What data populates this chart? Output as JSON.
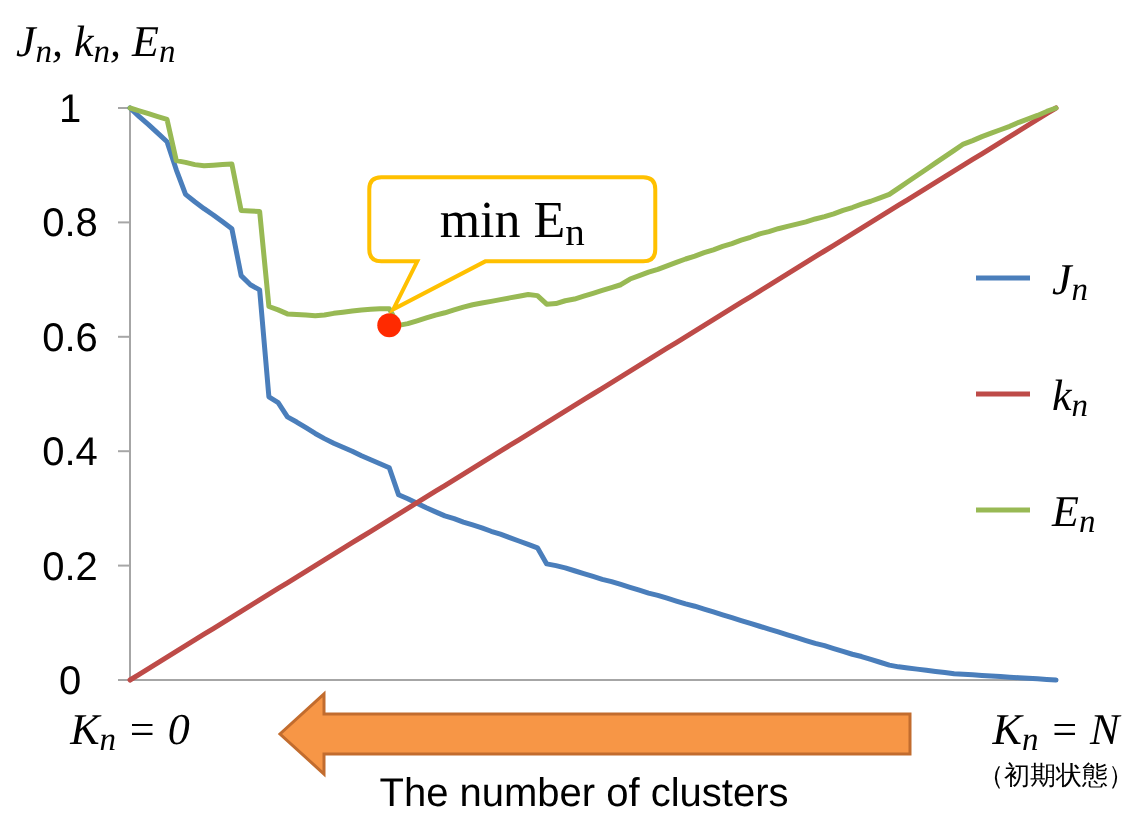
{
  "chart_data": {
    "type": "line",
    "ylabel": "J$_{n}$, k$_{n}$, E$_{n}$",
    "xlabel": "The number of clusters",
    "ylim": [
      0,
      1
    ],
    "yticks": [
      0,
      0.2,
      0.4,
      0.6,
      0.8,
      1
    ],
    "legend": "right",
    "categories": [
      "K$_{n}$ = 0",
      null,
      null,
      null,
      null,
      null,
      null,
      null,
      null,
      null,
      null,
      null,
      null,
      null,
      null,
      null,
      null,
      null,
      null,
      null,
      null,
      null,
      null,
      null,
      null,
      null,
      null,
      null,
      null,
      null,
      null,
      null,
      null,
      null,
      null,
      null,
      null,
      null,
      null,
      null,
      null,
      null,
      null,
      null,
      null,
      null,
      null,
      null,
      null,
      null,
      null,
      null,
      null,
      null,
      null,
      null,
      null,
      null,
      null,
      null,
      null,
      null,
      null,
      null,
      null,
      null,
      null,
      null,
      null,
      null,
      null,
      null,
      null,
      null,
      null,
      null,
      null,
      null,
      null,
      null,
      null,
      null,
      null,
      null,
      null,
      null,
      null,
      null,
      null,
      null,
      null,
      null,
      null,
      null,
      null,
      null,
      null,
      null,
      null,
      null,
      "K$_{n}$ = N"
    ],
    "series": [
      {
        "name": "J$_{n}$",
        "color": "#4a7ebb",
        "values": [
          1,
          0.985,
          0.971,
          0.956,
          0.941,
          0.892,
          0.849,
          0.836,
          0.824,
          0.813,
          0.801,
          0.789,
          0.707,
          0.691,
          0.682,
          0.495,
          0.485,
          0.46,
          0.451,
          0.441,
          0.431,
          0.422,
          0.414,
          0.407,
          0.4,
          0.392,
          0.385,
          0.378,
          0.371,
          0.324,
          0.317,
          0.309,
          0.301,
          0.294,
          0.287,
          0.282,
          0.276,
          0.271,
          0.266,
          0.26,
          0.255,
          0.249,
          0.243,
          0.237,
          0.231,
          0.203,
          0.2,
          0.196,
          0.191,
          0.186,
          0.181,
          0.176,
          0.172,
          0.167,
          0.162,
          0.157,
          0.152,
          0.148,
          0.143,
          0.138,
          0.133,
          0.129,
          0.124,
          0.119,
          0.114,
          0.109,
          0.104,
          0.099,
          0.094,
          0.089,
          0.084,
          0.079,
          0.074,
          0.069,
          0.064,
          0.06,
          0.055,
          0.05,
          0.045,
          0.041,
          0.036,
          0.031,
          0.026,
          0.023,
          0.021,
          0.019,
          0.017,
          0.015,
          0.013,
          0.011,
          0.01,
          0.009,
          0.008,
          0.007,
          0.006,
          0.005,
          0.004,
          0.003,
          0.002,
          0.001,
          0
        ]
      },
      {
        "name": "k$_{n}$",
        "color": "#be4b48",
        "values": [
          0,
          0.01,
          0.02,
          0.03,
          0.04,
          0.05,
          0.06,
          0.07,
          0.08,
          0.09,
          0.1,
          0.11,
          0.12,
          0.13,
          0.14,
          0.15,
          0.16,
          0.17,
          0.18,
          0.19,
          0.2,
          0.21,
          0.22,
          0.23,
          0.24,
          0.25,
          0.26,
          0.27,
          0.28,
          0.29,
          0.3,
          0.31,
          0.32,
          0.33,
          0.34,
          0.35,
          0.36,
          0.37,
          0.38,
          0.39,
          0.4,
          0.41,
          0.42,
          0.43,
          0.44,
          0.45,
          0.46,
          0.47,
          0.48,
          0.49,
          0.5,
          0.51,
          0.52,
          0.53,
          0.54,
          0.55,
          0.56,
          0.57,
          0.58,
          0.59,
          0.6,
          0.61,
          0.62,
          0.63,
          0.64,
          0.65,
          0.66,
          0.67,
          0.68,
          0.69,
          0.7,
          0.71,
          0.72,
          0.73,
          0.74,
          0.75,
          0.76,
          0.77,
          0.78,
          0.79,
          0.8,
          0.81,
          0.82,
          0.83,
          0.84,
          0.85,
          0.86,
          0.87,
          0.88,
          0.89,
          0.9,
          0.91,
          0.92,
          0.93,
          0.94,
          0.95,
          0.96,
          0.97,
          0.98,
          0.99,
          1
        ]
      },
      {
        "name": "E$_{n}$",
        "color": "#98b954",
        "values": [
          1,
          0.995,
          0.99,
          0.985,
          0.98,
          0.908,
          0.905,
          0.901,
          0.899,
          0.9,
          0.901,
          0.902,
          0.821,
          0.82,
          0.819,
          0.653,
          0.647,
          0.64,
          0.639,
          0.638,
          0.637,
          0.638,
          0.641,
          0.643,
          0.645,
          0.647,
          0.648,
          0.649,
          0.649,
          0.62,
          0.623,
          0.628,
          0.633,
          0.638,
          0.642,
          0.647,
          0.652,
          0.656,
          0.659,
          0.662,
          0.665,
          0.668,
          0.671,
          0.674,
          0.672,
          0.657,
          0.658,
          0.663,
          0.666,
          0.671,
          0.676,
          0.681,
          0.686,
          0.691,
          0.701,
          0.707,
          0.713,
          0.718,
          0.724,
          0.73,
          0.736,
          0.741,
          0.747,
          0.752,
          0.758,
          0.763,
          0.769,
          0.774,
          0.78,
          0.784,
          0.789,
          0.793,
          0.797,
          0.801,
          0.806,
          0.81,
          0.815,
          0.821,
          0.826,
          0.832,
          0.837,
          0.843,
          0.849,
          0.86,
          0.871,
          0.882,
          0.893,
          0.904,
          0.915,
          0.926,
          0.937,
          0.943,
          0.95,
          0.956,
          0.962,
          0.968,
          0.975,
          0.981,
          0.987,
          0.994,
          1
        ]
      },
      {
        "type": "scatter",
        "color": "#ff2a00",
        "marker": "circle",
        "values": [
          null,
          null,
          null,
          null,
          null,
          null,
          null,
          null,
          null,
          null,
          null,
          null,
          null,
          null,
          null,
          null,
          null,
          null,
          null,
          null,
          null,
          null,
          null,
          null,
          null,
          null,
          null,
          null,
          0.62,
          null,
          null,
          null,
          null,
          null,
          null,
          null,
          null,
          null,
          null,
          null,
          null,
          null,
          null,
          null,
          null,
          null,
          null,
          null,
          null,
          null,
          null,
          null,
          null,
          null,
          null,
          null,
          null,
          null,
          null,
          null,
          null,
          null,
          null,
          null,
          null,
          null,
          null,
          null,
          null,
          null,
          null,
          null,
          null,
          null,
          null,
          null,
          null,
          null,
          null,
          null,
          null,
          null,
          null,
          null,
          null,
          null,
          null,
          null,
          null,
          null,
          null,
          null,
          null,
          null,
          null,
          null,
          null,
          null,
          null,
          null,
          null
        ]
      }
    ],
    "annotations": [
      "min E$_{n}$",
      "（初期状態）"
    ]
  }
}
